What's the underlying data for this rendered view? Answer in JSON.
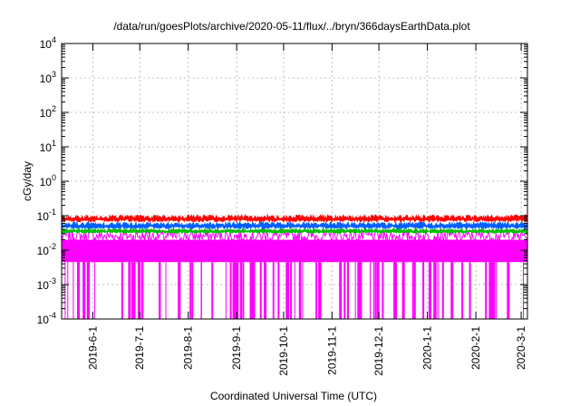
{
  "chart_data": {
    "type": "line",
    "title": "/data/run/goesPlots/archive/2020-05-11/flux/../bryn/366daysEarthData.plot",
    "xlabel": "Coordinated Universal Time (UTC)",
    "ylabel": "cGy/day",
    "yscale": "log",
    "ylim": [
      0.0001,
      10000
    ],
    "y_ticks": [
      {
        "value": 0.0001,
        "base": "10",
        "exp": "-4"
      },
      {
        "value": 0.001,
        "base": "10",
        "exp": "-3"
      },
      {
        "value": 0.01,
        "base": "10",
        "exp": "-2"
      },
      {
        "value": 0.1,
        "base": "10",
        "exp": "-1"
      },
      {
        "value": 1,
        "base": "10",
        "exp": "0"
      },
      {
        "value": 10,
        "base": "10",
        "exp": "1"
      },
      {
        "value": 100,
        "base": "10",
        "exp": "2"
      },
      {
        "value": 1000,
        "base": "10",
        "exp": "3"
      },
      {
        "value": 10000,
        "base": "10",
        "exp": "4"
      }
    ],
    "xlim": [
      "2019-05-12",
      "2020-03-05"
    ],
    "x_ticks": [
      "2019-6-1",
      "2019-7-1",
      "2019-8-1",
      "2019-9-1",
      "2019-10-1",
      "2019-11-1",
      "2019-12-1",
      "2020-1-1",
      "2020-2-1",
      "2020-3-1"
    ],
    "grid": true,
    "series": [
      {
        "color": "#ff0000",
        "level": 0.08,
        "spread": 0.12
      },
      {
        "color": "#0060ff",
        "level": 0.05,
        "spread": 0.12
      },
      {
        "color": "#00c000",
        "level": 0.035,
        "spread": 0.08
      },
      {
        "color": "#ff00ff",
        "level": 0.02,
        "low": 0.0045,
        "dropouts_to": 0.0001
      }
    ]
  }
}
